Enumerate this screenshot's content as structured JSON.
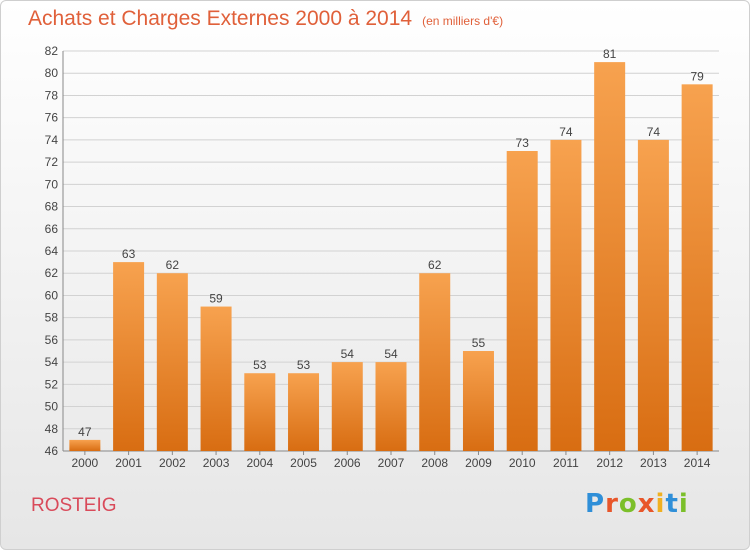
{
  "header": {
    "title": "Achats et Charges Externes 2000 à 2014",
    "subtitle": "(en milliers d'€)"
  },
  "footer": {
    "place": "ROSTEIG",
    "logo_text": "Proxiti"
  },
  "colors": {
    "title": "#e0603a",
    "bar_top": "#f7a24f",
    "bar_bottom": "#d86d12",
    "place": "#d94a5a"
  },
  "chart_data": {
    "type": "bar",
    "categories": [
      "2000",
      "2001",
      "2002",
      "2003",
      "2004",
      "2005",
      "2006",
      "2007",
      "2008",
      "2009",
      "2010",
      "2011",
      "2012",
      "2013",
      "2014"
    ],
    "values": [
      47,
      63,
      62,
      59,
      53,
      53,
      54,
      54,
      62,
      55,
      73,
      74,
      81,
      74,
      79
    ],
    "ylim": [
      46,
      82
    ],
    "yticks": [
      46,
      48,
      50,
      52,
      54,
      56,
      58,
      60,
      62,
      64,
      66,
      68,
      70,
      72,
      74,
      76,
      78,
      80,
      82
    ],
    "grid": true,
    "data_labels": true
  }
}
